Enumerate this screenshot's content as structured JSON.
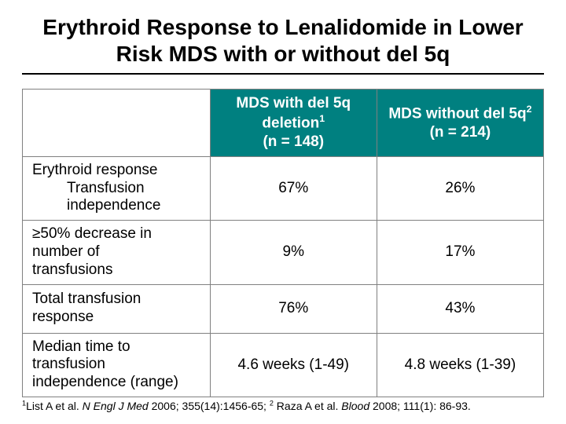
{
  "title": "Erythroid Response to Lenalidomide in Lower Risk MDS with or without del 5q",
  "table": {
    "header": {
      "col1_line1": "MDS with del 5q",
      "col1_line2_pre": "deletion",
      "col1_sup": "1",
      "col1_line3": "(n = 148)",
      "col2_line1_pre": "MDS without del 5q",
      "col2_sup": "2",
      "col2_line2": "(n = 214)"
    },
    "rows": [
      {
        "label_main": "Erythroid response",
        "label_sub1": "Transfusion",
        "label_sub2": "independence",
        "col1": "67%",
        "col2": "26%"
      },
      {
        "label_line1": "≥50% decrease in",
        "label_line2": "number of",
        "label_line3": "transfusions",
        "col1": "9%",
        "col2": "17%"
      },
      {
        "label_line1": "Total transfusion",
        "label_line2": "response",
        "col1": "76%",
        "col2": "43%"
      },
      {
        "label_line1": "Median time to transfusion",
        "label_line2": "independence (range)",
        "col1": "4.6 weeks (1-49)",
        "col2": "4.8 weeks (1-39)"
      }
    ]
  },
  "footnote": {
    "sup1": "1",
    "ref1_pre": "List A et al. ",
    "ref1_ital": "N Engl J Med ",
    "ref1_post": "2006; 355(14):1456-65; ",
    "sup2": "2",
    "ref2_pre": " Raza A et al. ",
    "ref2_ital": "Blood ",
    "ref2_post": "2008; 111(1): 86-93."
  },
  "colors": {
    "header_bg": "#008080",
    "header_text": "#ffffff",
    "border": "#808080",
    "text": "#000000",
    "background": "#ffffff"
  }
}
